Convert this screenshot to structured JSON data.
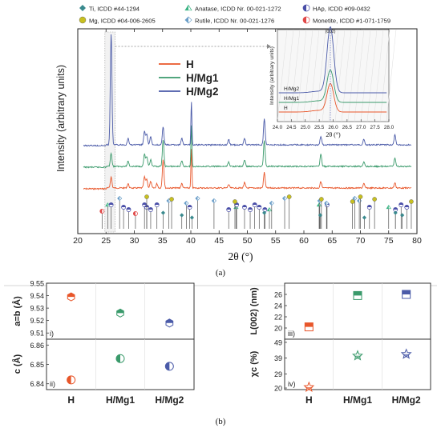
{
  "colors": {
    "H": "#e8562a",
    "H/Mg1": "#3a9a6b",
    "H/Mg2": "#4a5aa8",
    "Ti": "#3a8a8e",
    "Mg": "#c8c020",
    "Anatase": "#3ab383",
    "Rutile": "#6a9ec8",
    "HAp": "#4a4fa8",
    "Monetite": "#e04848",
    "purple": "#9040c8"
  },
  "legend": [
    {
      "key": "Ti",
      "label": "Ti, ICDD #44-1294",
      "icon": "diamond-icon"
    },
    {
      "key": "Anatase",
      "label": "Anatase, ICDD Nr. 00-021-1272",
      "icon": "triangle-icon"
    },
    {
      "key": "HAp",
      "label": "HAp, ICDD #09-0432",
      "icon": "half-circle-icon"
    },
    {
      "key": "Mg",
      "label": "Mg, ICDD #04-006-2605",
      "icon": "circle-icon"
    },
    {
      "key": "Rutile",
      "label": "Rutile, ICDD Nr. 00-021-1276",
      "icon": "half-diamond-icon"
    },
    {
      "key": "Monetite",
      "label": "Monetite, ICDD #1-071-1759",
      "icon": "half-circle-icon"
    }
  ],
  "panel_a_label": "(a)",
  "panel_b_label": "(b)",
  "chart_data": [
    {
      "type": "line",
      "xlabel": "2θ (°)",
      "ylabel": "Intensity (arbitrary units)",
      "xlim": [
        20,
        80
      ],
      "xticks": [
        "20",
        "25",
        "30",
        "35",
        "40",
        "45",
        "50",
        "55",
        "60",
        "65",
        "70",
        "75",
        "80"
      ],
      "series": [
        {
          "name": "H",
          "peaks": [
            [
              25.9,
              0.25
            ],
            [
              28.9,
              0.1
            ],
            [
              31.8,
              0.25
            ],
            [
              32.2,
              0.2
            ],
            [
              32.9,
              0.15
            ],
            [
              34.0,
              0.1
            ],
            [
              35.1,
              0.65
            ],
            [
              38.4,
              0.1
            ],
            [
              40.1,
              0.9
            ],
            [
              46.7,
              0.08
            ],
            [
              49.5,
              0.12
            ],
            [
              53.0,
              0.35
            ],
            [
              63.0,
              0.15
            ],
            [
              70.6,
              0.1
            ],
            [
              76.1,
              0.12
            ]
          ]
        },
        {
          "name": "H/Mg1",
          "peaks": [
            [
              25.9,
              0.3
            ],
            [
              28.9,
              0.12
            ],
            [
              31.8,
              0.28
            ],
            [
              32.2,
              0.22
            ],
            [
              32.9,
              0.15
            ],
            [
              35.1,
              0.6
            ],
            [
              38.4,
              0.12
            ],
            [
              40.1,
              0.95
            ],
            [
              46.7,
              0.1
            ],
            [
              49.5,
              0.15
            ],
            [
              53.0,
              0.6
            ],
            [
              63.0,
              0.28
            ],
            [
              70.6,
              0.1
            ],
            [
              76.1,
              0.2
            ]
          ]
        },
        {
          "name": "H/Mg2",
          "peaks": [
            [
              25.9,
              1.0
            ],
            [
              28.9,
              0.15
            ],
            [
              31.8,
              0.3
            ],
            [
              32.2,
              0.25
            ],
            [
              32.9,
              0.18
            ],
            [
              35.1,
              0.4
            ],
            [
              38.4,
              0.15
            ],
            [
              40.1,
              1.0
            ],
            [
              46.7,
              0.12
            ],
            [
              49.5,
              0.15
            ],
            [
              53.0,
              0.6
            ],
            [
              63.0,
              0.2
            ],
            [
              70.6,
              0.12
            ],
            [
              76.1,
              0.22
            ]
          ]
        }
      ],
      "reference_markers": [
        {
          "phase": "Monetite",
          "x": [
            24.3,
            30.2
          ]
        },
        {
          "phase": "Anatase",
          "x": [
            25.3,
            48.0,
            53.9,
            62.7,
            75.0
          ]
        },
        {
          "phase": "HAp",
          "x": [
            25.9,
            28.1,
            29.0,
            31.8,
            32.2,
            32.9,
            34.0,
            39.8,
            46.7,
            48.1,
            49.5,
            50.5,
            51.3,
            52.1,
            53.1,
            64.1,
            71.6,
            76.2,
            77.2,
            78.2
          ]
        },
        {
          "phase": "Rutile",
          "x": [
            27.4,
            36.1,
            39.2,
            41.2,
            44.1,
            54.3,
            56.6,
            62.8,
            64.0,
            69.0,
            69.8
          ]
        },
        {
          "phase": "Mg",
          "x": [
            32.2,
            36.6,
            47.8,
            57.4,
            63.1,
            68.6,
            70.0,
            72.5,
            79.0
          ]
        },
        {
          "phase": "Ti",
          "x": [
            35.1,
            38.4,
            40.2,
            53.0,
            62.9,
            70.7,
            76.2,
            77.4
          ]
        }
      ],
      "inset": {
        "xlim": [
          24.0,
          28.0
        ],
        "xticks": [
          "24.0",
          "24.5",
          "25.0",
          "25.5",
          "26.0",
          "26.5",
          "27.0",
          "27.5",
          "28.0"
        ],
        "xlabel": "2θ (°)",
        "ylabel": "Intensity (arbitrary units)",
        "peak_label": "(002)",
        "labels": [
          "H/Mg2",
          "H/Mg1",
          "H"
        ],
        "peak_center": 25.9
      }
    },
    {
      "type": "scatter",
      "categories": [
        "H",
        "H/Mg1",
        "H/Mg2"
      ],
      "panels": [
        {
          "id": "i)",
          "ylabel": "a=b (Å)",
          "ylim": [
            9.505,
            9.55
          ],
          "yticks": [
            "9.55",
            "9.54",
            "9.53",
            "9.52",
            "9.51"
          ],
          "values": [
            9.539,
            9.526,
            9.518
          ]
        },
        {
          "id": "ii)",
          "ylabel": "c (Å)",
          "ylim": [
            6.837,
            6.863
          ],
          "yticks": [
            "6.86",
            "6.85",
            "6.84"
          ],
          "values": [
            6.842,
            6.853,
            6.849
          ]
        },
        {
          "id": "iii)",
          "ylabel": "L(002) (nm)",
          "ylim": [
            18,
            28
          ],
          "yticks": [
            "26",
            "24",
            "22",
            "20"
          ],
          "values": [
            20.2,
            25.8,
            26.0
          ]
        },
        {
          "id": "iv)",
          "ylabel": "χc (%)",
          "ylim": [
            19,
            51
          ],
          "yticks": [
            "49",
            "39",
            "29",
            "20"
          ],
          "values": [
            20.5,
            40.5,
            41.5
          ]
        }
      ]
    }
  ]
}
